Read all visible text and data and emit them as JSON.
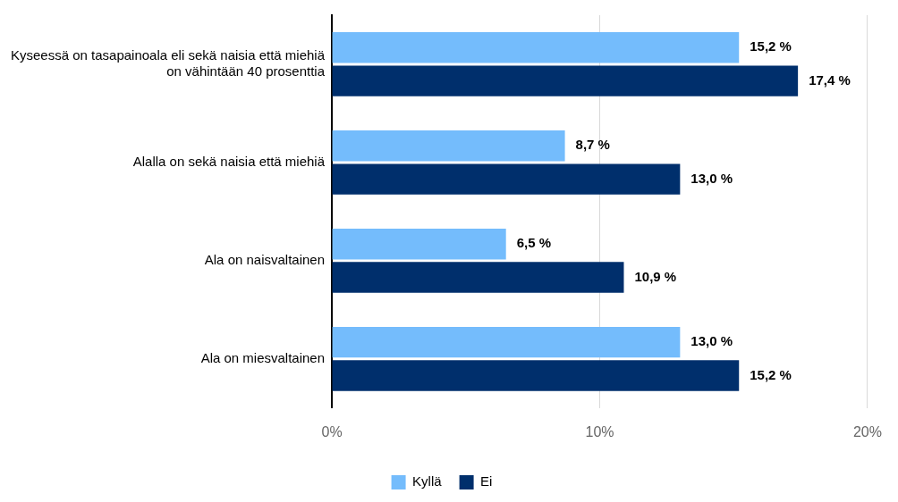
{
  "chart_data": {
    "type": "bar",
    "orientation": "horizontal",
    "categories": [
      "Kyseessä on tasapainoala eli sekä naisia että miehiä on vähintään 40 prosenttia",
      "Alalla on sekä naisia että miehiä",
      "Ala on naisvaltainen",
      "Ala on miesvaltainen"
    ],
    "series": [
      {
        "name": "Kyllä",
        "color": "#74bcfc",
        "values": [
          15.2,
          8.7,
          6.5,
          13.0
        ],
        "value_labels": [
          "15,2 %",
          "8,7 %",
          "6,5 %",
          "13,0 %"
        ]
      },
      {
        "name": "Ei",
        "color": "#002f6c",
        "values": [
          17.4,
          13.0,
          10.9,
          15.2
        ],
        "value_labels": [
          "17,4 %",
          "13,0 %",
          "10,9 %",
          "15,2 %"
        ]
      }
    ],
    "xlim": [
      0,
      20
    ],
    "xticks": [
      {
        "value": 0,
        "label": "0%"
      },
      {
        "value": 10,
        "label": "10%"
      },
      {
        "value": 20,
        "label": "20%"
      }
    ],
    "grid": "x",
    "legend": "bottom"
  }
}
